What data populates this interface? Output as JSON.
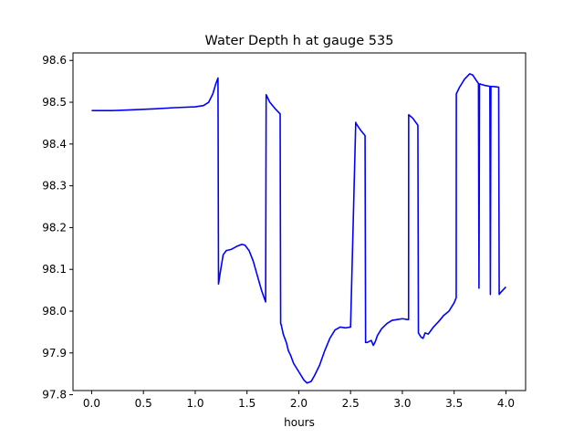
{
  "chart_data": {
    "type": "line",
    "title": "Water Depth h at gauge 535",
    "xlabel": "hours",
    "ylabel": "",
    "xlim": [
      -0.18,
      4.19
    ],
    "ylim": [
      97.81,
      98.618
    ],
    "xticks": [
      0.0,
      0.5,
      1.0,
      1.5,
      2.0,
      2.5,
      3.0,
      3.5,
      4.0
    ],
    "xtick_labels": [
      "0.0",
      "0.5",
      "1.0",
      "1.5",
      "2.0",
      "2.5",
      "3.0",
      "3.5",
      "4.0"
    ],
    "yticks": [
      97.8,
      97.9,
      98.0,
      98.1,
      98.2,
      98.3,
      98.4,
      98.5,
      98.6
    ],
    "ytick_labels": [
      "97.8",
      "97.9",
      "98.0",
      "98.1",
      "98.2",
      "98.3",
      "98.4",
      "98.5",
      "98.6"
    ],
    "grid": false,
    "legend": "none",
    "line_color": "#0000ff",
    "series": [
      {
        "x": [
          0.0,
          0.2,
          0.4,
          0.6,
          0.8,
          1.0,
          1.08,
          1.13,
          1.17,
          1.2,
          1.22,
          1.225,
          1.24,
          1.27,
          1.3,
          1.35,
          1.4,
          1.45,
          1.48,
          1.52,
          1.56,
          1.6,
          1.64,
          1.68,
          1.685,
          1.72,
          1.77,
          1.82,
          1.825,
          1.83,
          1.85,
          1.88,
          1.9,
          1.92,
          1.95,
          2.0,
          2.05,
          2.08,
          2.1,
          2.12,
          2.15,
          2.2,
          2.25,
          2.3,
          2.35,
          2.4,
          2.45,
          2.5,
          2.55,
          2.551,
          2.6,
          2.64,
          2.645,
          2.66,
          2.7,
          2.72,
          2.74,
          2.76,
          2.8,
          2.85,
          2.9,
          2.95,
          3.0,
          3.05,
          3.06,
          3.061,
          3.1,
          3.15,
          3.155,
          3.18,
          3.2,
          3.22,
          3.25,
          3.3,
          3.35,
          3.4,
          3.45,
          3.5,
          3.52,
          3.521,
          3.55,
          3.6,
          3.65,
          3.68,
          3.72,
          3.735,
          3.74,
          3.745,
          3.8,
          3.845,
          3.85,
          3.855,
          3.9,
          3.93,
          3.935,
          3.95,
          4.0
        ],
        "y": [
          98.48,
          98.48,
          98.482,
          98.484,
          98.487,
          98.489,
          98.492,
          98.5,
          98.52,
          98.545,
          98.558,
          98.065,
          98.09,
          98.135,
          98.145,
          98.148,
          98.155,
          98.16,
          98.158,
          98.145,
          98.12,
          98.085,
          98.05,
          98.022,
          98.518,
          98.5,
          98.485,
          98.472,
          97.97,
          97.968,
          97.945,
          97.925,
          97.905,
          97.895,
          97.875,
          97.855,
          97.835,
          97.828,
          97.83,
          97.832,
          97.845,
          97.87,
          97.905,
          97.935,
          97.955,
          97.962,
          97.96,
          97.962,
          98.452,
          98.45,
          98.432,
          98.42,
          97.925,
          97.925,
          97.93,
          97.918,
          97.928,
          97.942,
          97.958,
          97.97,
          97.978,
          97.98,
          97.982,
          97.98,
          97.98,
          98.47,
          98.462,
          98.445,
          97.948,
          97.938,
          97.935,
          97.948,
          97.945,
          97.962,
          97.975,
          97.99,
          98.0,
          98.02,
          98.032,
          98.52,
          98.535,
          98.555,
          98.568,
          98.565,
          98.55,
          98.545,
          98.055,
          98.544,
          98.54,
          98.538,
          98.04,
          98.538,
          98.537,
          98.536,
          98.04,
          98.045,
          98.058
        ]
      }
    ]
  }
}
